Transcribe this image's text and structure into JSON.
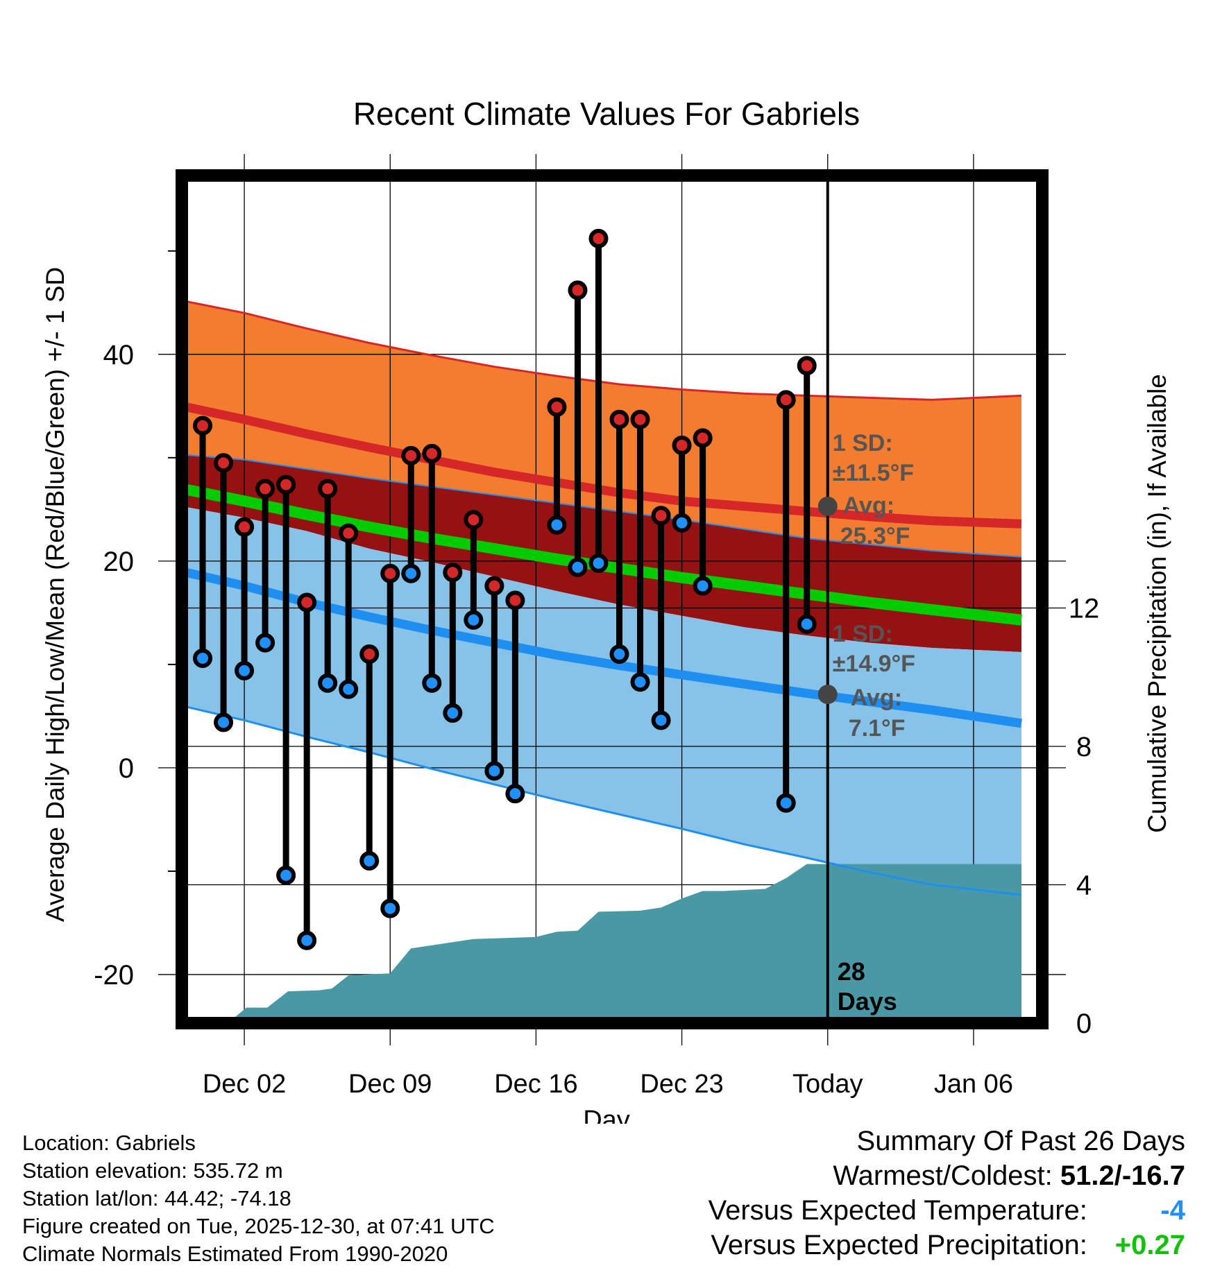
{
  "chart_data": {
    "type": "line",
    "title": "Recent Climate Values For Gabriels",
    "xlabel": "Day",
    "ylabel": "Average Daily High/Low/Mean (Red/Blue/Green) +/- 1 SD",
    "y2label": "Cumulative Precipitation (in), If Available",
    "x_tick_labels": [
      "Dec 02",
      "Dec 09",
      "Dec 16",
      "Dec 23",
      "Today",
      "Jan 06"
    ],
    "y_ticks": [
      "40",
      "20",
      "0",
      "-20"
    ],
    "y2_ticks": [
      "12",
      "8",
      "4",
      "0"
    ],
    "ylim": [
      -24.7,
      57.3
    ],
    "y2lim": [
      0,
      24.5
    ],
    "xlim": [
      0.0,
      41.3
    ],
    "x_tick_positions": [
      3,
      10,
      17,
      24,
      31,
      38
    ],
    "normals_x": [
      0,
      3,
      6,
      9,
      12,
      15,
      18,
      21,
      24,
      27,
      30,
      33,
      36,
      40.3
    ],
    "normal_high": [
      35.0,
      33.7,
      32.3,
      31.0,
      29.8,
      28.6,
      27.6,
      26.6,
      25.8,
      25.3,
      24.8,
      24.3,
      23.9,
      23.6
    ],
    "normal_high_upper": [
      45.2,
      44.0,
      42.5,
      41.1,
      39.9,
      38.8,
      37.9,
      37.1,
      36.6,
      36.2,
      36.0,
      35.8,
      35.6,
      36.0
    ],
    "normal_high_lower": [
      30.3,
      29.8,
      28.9,
      28.0,
      27.2,
      26.4,
      25.6,
      24.8,
      24.0,
      23.1,
      22.2,
      21.6,
      21.0,
      20.4
    ],
    "normal_mean": [
      27.0,
      25.8,
      24.5,
      23.3,
      22.2,
      21.2,
      20.2,
      19.3,
      18.4,
      17.6,
      16.8,
      16.0,
      15.3,
      14.3
    ],
    "normal_mean_dark_lower": [
      25.3,
      24.2,
      22.9,
      21.2,
      19.9,
      18.5,
      17.1,
      15.8,
      14.7,
      13.6,
      12.8,
      12.1,
      11.6,
      11.2
    ],
    "normal_low": [
      19.0,
      17.6,
      16.0,
      14.6,
      13.3,
      12.1,
      10.9,
      9.9,
      9.0,
      8.1,
      7.2,
      6.4,
      5.6,
      4.3
    ],
    "normal_low_lower": [
      6.0,
      4.6,
      3.0,
      1.5,
      -0.1,
      -1.6,
      -3.1,
      -4.5,
      -5.9,
      -7.4,
      -8.7,
      -10.1,
      -11.3,
      -12.3
    ],
    "annotations": {
      "high_sd": "1 SD:",
      "high_sd_value": "±11.5°F",
      "high_avg": "Avg:",
      "high_avg_value": "25.3°F",
      "low_sd": "1 SD:",
      "low_sd_value": "±14.9°F",
      "low_avg": "Avg:",
      "low_avg_value": "7.1°F",
      "days_num": "28",
      "days_word": "Days"
    },
    "today_x": 31,
    "today_high_avg": 25.3,
    "today_low_avg": 7.1,
    "daily": [
      {
        "x": 1.0,
        "high": 33.1,
        "low": 10.6
      },
      {
        "x": 2.0,
        "high": 29.5,
        "low": 4.4
      },
      {
        "x": 3.0,
        "high": 23.3,
        "low": 9.4
      },
      {
        "x": 4.0,
        "high": 27.0,
        "low": 12.1
      },
      {
        "x": 5.0,
        "high": 27.4,
        "low": -10.4
      },
      {
        "x": 6.0,
        "high": 16.0,
        "low": -16.7
      },
      {
        "x": 7.0,
        "high": 27.0,
        "low": 8.2
      },
      {
        "x": 8.0,
        "high": 22.7,
        "low": 7.6
      },
      {
        "x": 9.0,
        "high": 11.0,
        "low": -9.0
      },
      {
        "x": 10.0,
        "high": 18.8,
        "low": -13.6
      },
      {
        "x": 11.0,
        "high": 30.2,
        "low": 18.8
      },
      {
        "x": 12.0,
        "high": 30.4,
        "low": 8.2
      },
      {
        "x": 13.0,
        "high": 18.9,
        "low": 5.3
      },
      {
        "x": 14.0,
        "high": 24.0,
        "low": 14.3
      },
      {
        "x": 15.0,
        "high": 17.6,
        "low": -0.3
      },
      {
        "x": 16.0,
        "high": 16.2,
        "low": -2.5
      },
      {
        "x": 18.0,
        "high": 34.9,
        "low": 23.5
      },
      {
        "x": 19.0,
        "high": 46.2,
        "low": 19.4
      },
      {
        "x": 20.0,
        "high": 51.2,
        "low": 19.8
      },
      {
        "x": 21.0,
        "high": 33.7,
        "low": 11.0
      },
      {
        "x": 22.0,
        "high": 33.7,
        "low": 8.3
      },
      {
        "x": 23.0,
        "high": 24.4,
        "low": 4.6
      },
      {
        "x": 24.0,
        "high": 31.2,
        "low": 23.7
      },
      {
        "x": 25.0,
        "high": 31.9,
        "low": 17.6
      },
      {
        "x": 29.0,
        "high": 35.6,
        "low": -3.4
      },
      {
        "x": 30.0,
        "high": 38.9,
        "low": 13.9
      }
    ],
    "precip_x": [
      0,
      2.2,
      3.1,
      4.1,
      5.1,
      6.6,
      7.2,
      8.0,
      10.0,
      11.0,
      14.0,
      17.0,
      18.0,
      19.0,
      20.0,
      22.0,
      23.0,
      24.0,
      25.0,
      26.0,
      28.0,
      29.0,
      30.0,
      31.0,
      40.3
    ],
    "precip_cum": [
      0.0,
      0.0,
      0.45,
      0.45,
      0.92,
      0.95,
      1.0,
      1.38,
      1.44,
      2.16,
      2.43,
      2.49,
      2.64,
      2.67,
      3.22,
      3.25,
      3.34,
      3.6,
      3.82,
      3.82,
      3.88,
      4.19,
      4.6,
      4.6,
      4.6
    ]
  },
  "colors": {
    "orange": "#f47c2e",
    "dark_red": "#961111",
    "red_line": "#d62728",
    "light_blue": "#87c3e8",
    "blue_line": "#1e8ff0",
    "green": "#00cc00",
    "teal": "#4899a3",
    "high_marker": "#d62728",
    "low_marker": "#1e90ff",
    "annotation_gray": "#555555"
  },
  "info": {
    "location": "Location: Gabriels",
    "elevation": "Station elevation: 535.72 m",
    "latlon": "Station lat/lon: 44.42; -74.18",
    "created": "Figure created on Tue, 2025-12-30, at 07:41 UTC",
    "normals": "Climate Normals Estimated From 1990-2020"
  },
  "summary": {
    "title": "Summary Of Past 26 Days",
    "warmest_label": "Warmest/Coldest:",
    "warmest_value": "51.2/-16.7",
    "temp_label": "Versus Expected Temperature:",
    "temp_value": "-4",
    "precip_label": "Versus Expected Precipitation:",
    "precip_value": "+0.27"
  }
}
